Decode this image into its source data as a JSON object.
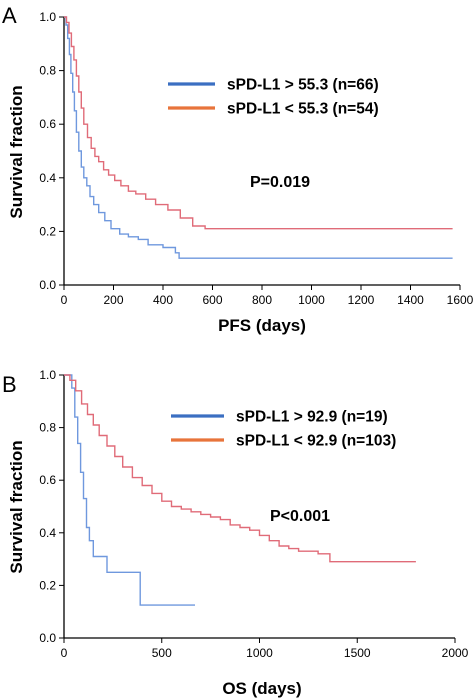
{
  "chart_data": [
    {
      "panel": "A",
      "type": "line",
      "xlabel": "PFS (days)",
      "ylabel": "Survival fraction",
      "xlim": [
        0,
        1600
      ],
      "ylim": [
        0,
        1.0
      ],
      "xticks": [
        "0",
        "200",
        "400",
        "600",
        "800",
        "1000",
        "1200",
        "1400",
        "1600"
      ],
      "yticks": [
        "0.0",
        "0.2",
        "0.4",
        "0.6",
        "0.8",
        "1.0"
      ],
      "annotation": "P=0.019",
      "grid": false,
      "legend_placement": "top-right",
      "series": [
        {
          "name": "sPD-L1  > 55.3 (n=66)",
          "color": "#6f98de",
          "legend_color": "#3b6fc2",
          "x": [
            0,
            8,
            15,
            22,
            28,
            35,
            42,
            50,
            60,
            70,
            80,
            92,
            105,
            120,
            140,
            165,
            190,
            225,
            260,
            300,
            340,
            400,
            450,
            465,
            1570
          ],
          "y": [
            1.0,
            0.97,
            0.92,
            0.86,
            0.79,
            0.72,
            0.65,
            0.57,
            0.5,
            0.44,
            0.4,
            0.37,
            0.33,
            0.3,
            0.27,
            0.24,
            0.21,
            0.19,
            0.18,
            0.17,
            0.15,
            0.14,
            0.12,
            0.1,
            0.1
          ]
        },
        {
          "name": "sPD-L1  < 55.3 (n=54)",
          "color": "#e06b78",
          "legend_color": "#e8743b",
          "x": [
            0,
            10,
            20,
            30,
            40,
            50,
            60,
            70,
            80,
            95,
            110,
            125,
            140,
            160,
            180,
            205,
            230,
            260,
            290,
            330,
            370,
            420,
            470,
            520,
            570,
            1570
          ],
          "y": [
            1.0,
            0.98,
            0.94,
            0.89,
            0.84,
            0.78,
            0.72,
            0.66,
            0.6,
            0.55,
            0.51,
            0.48,
            0.46,
            0.43,
            0.41,
            0.39,
            0.37,
            0.35,
            0.34,
            0.32,
            0.3,
            0.28,
            0.25,
            0.22,
            0.21,
            0.21
          ]
        }
      ]
    },
    {
      "panel": "B",
      "type": "line",
      "xlabel": "OS (days)",
      "ylabel": "Survival fraction",
      "xlim": [
        0,
        2000
      ],
      "ylim": [
        0,
        1.0
      ],
      "xticks": [
        "0",
        "500",
        "1000",
        "1500",
        "2000"
      ],
      "yticks": [
        "0.0",
        "0.2",
        "0.4",
        "0.6",
        "0.8",
        "1.0"
      ],
      "annotation": "P<0.001",
      "grid": false,
      "legend_placement": "top-right",
      "series": [
        {
          "name": "sPD-L1  > 92.9 (n=19)",
          "color": "#6f98de",
          "legend_color": "#3b6fc2",
          "x": [
            0,
            40,
            55,
            70,
            85,
            100,
            115,
            130,
            150,
            220,
            390,
            670
          ],
          "y": [
            1.0,
            0.95,
            0.84,
            0.74,
            0.63,
            0.53,
            0.42,
            0.37,
            0.31,
            0.25,
            0.125,
            0.125
          ]
        },
        {
          "name": "sPD-L1  < 92.9 (n=103)",
          "color": "#e06b78",
          "legend_color": "#e8743b",
          "x": [
            0,
            30,
            60,
            90,
            120,
            150,
            180,
            220,
            260,
            300,
            350,
            400,
            450,
            500,
            550,
            600,
            650,
            700,
            750,
            800,
            850,
            900,
            950,
            1000,
            1050,
            1100,
            1150,
            1200,
            1300,
            1360,
            1800
          ],
          "y": [
            1.0,
            0.98,
            0.94,
            0.89,
            0.85,
            0.81,
            0.77,
            0.73,
            0.69,
            0.65,
            0.61,
            0.58,
            0.55,
            0.52,
            0.5,
            0.49,
            0.48,
            0.47,
            0.46,
            0.45,
            0.43,
            0.42,
            0.41,
            0.39,
            0.37,
            0.35,
            0.34,
            0.33,
            0.32,
            0.29,
            0.29
          ]
        }
      ]
    }
  ]
}
